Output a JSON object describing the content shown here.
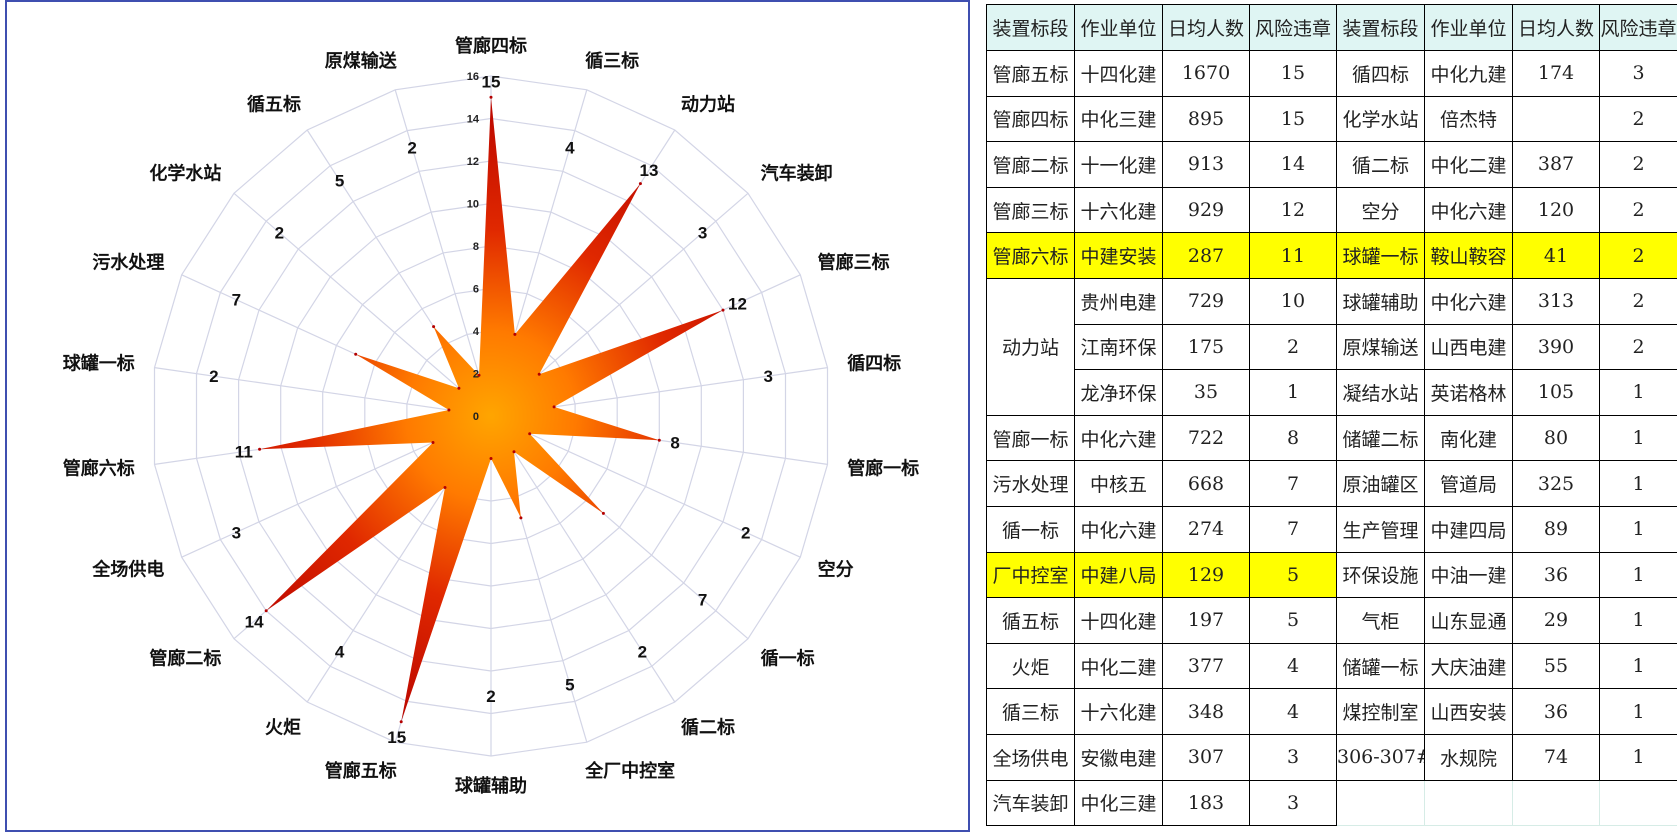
{
  "chart_data": {
    "type": "radar",
    "title": "",
    "rlim": [
      0,
      16
    ],
    "r_ticks": [
      "0",
      "2",
      "4",
      "6",
      "8",
      "10",
      "12",
      "14",
      "16"
    ],
    "grid": true,
    "categories": [
      "管廊四标",
      "循三标",
      "动力站",
      "汽车装卸",
      "管廊三标",
      "循四标",
      "管廊一标",
      "空分",
      "循一标",
      "循二标",
      "全厂中控室",
      "球罐辅助",
      "管廊五标",
      "火炬",
      "管廊二标",
      "全场供电",
      "管廊六标",
      "球罐一标",
      "污水处理",
      "化学水站",
      "循五标",
      "原煤输送"
    ],
    "series": [
      {
        "values": [
          15,
          4,
          13,
          3,
          12,
          3,
          8,
          2,
          7,
          2,
          5,
          2,
          15,
          4,
          14,
          3,
          11,
          2,
          7,
          2,
          5,
          2
        ]
      }
    ],
    "value_labels": [
      "15",
      "4",
      "13",
      "3",
      "12",
      "3",
      "8",
      "2",
      "7",
      "2",
      "5",
      "2",
      "15",
      "4",
      "14",
      "3",
      "11",
      "2",
      "7",
      "2",
      "5",
      "2"
    ],
    "colors": {
      "center": "#ffa500",
      "edge": "#b40000",
      "grid": "#d3d5e6",
      "frame": "#3f4fb0"
    }
  },
  "table": {
    "headers": [
      "装置标段",
      "作业单位",
      "日均人数",
      "风险违章",
      "装置标段",
      "作业单位",
      "日均人数",
      "风险违章"
    ],
    "left_rows": [
      {
        "seg": "管廊五标",
        "unit": "十四化建",
        "people": "1670",
        "risk": "15"
      },
      {
        "seg": "管廊四标",
        "unit": "中化三建",
        "people": "895",
        "risk": "15"
      },
      {
        "seg": "管廊二标",
        "unit": "十一化建",
        "people": "913",
        "risk": "14"
      },
      {
        "seg": "管廊三标",
        "unit": "十六化建",
        "people": "929",
        "risk": "12"
      },
      {
        "seg": "管廊六标",
        "unit": "中建安装",
        "people": "287",
        "risk": "11",
        "hl": true
      },
      {
        "seg": "动力站",
        "span": 3,
        "unit": "贵州电建",
        "people": "729",
        "risk": "10"
      },
      {
        "unit": "江南环保",
        "people": "175",
        "risk": "2"
      },
      {
        "unit": "龙净环保",
        "people": "35",
        "risk": "1"
      },
      {
        "seg": "管廊一标",
        "unit": "中化六建",
        "people": "722",
        "risk": "8"
      },
      {
        "seg": "污水处理",
        "unit": "中核五",
        "people": "668",
        "risk": "7"
      },
      {
        "seg": "循一标",
        "unit": "中化六建",
        "people": "274",
        "risk": "7"
      },
      {
        "seg": "厂中控室",
        "unit": "中建八局",
        "people": "129",
        "risk": "5",
        "hl": true
      },
      {
        "seg": "循五标",
        "unit": "十四化建",
        "people": "197",
        "risk": "5"
      },
      {
        "seg": "火炬",
        "unit": "中化二建",
        "people": "377",
        "risk": "4"
      },
      {
        "seg": "循三标",
        "unit": "十六化建",
        "people": "348",
        "risk": "4"
      },
      {
        "seg": "全场供电",
        "unit": "安徽电建",
        "people": "307",
        "risk": "3"
      },
      {
        "seg": "汽车装卸",
        "unit": "中化三建",
        "people": "183",
        "risk": "3"
      }
    ],
    "right_rows": [
      {
        "seg": "循四标",
        "unit": "中化九建",
        "people": "174",
        "risk": "3"
      },
      {
        "seg": "化学水站",
        "unit": "倍杰特",
        "people": "",
        "risk": "2"
      },
      {
        "seg": "循二标",
        "unit": "中化二建",
        "people": "387",
        "risk": "2"
      },
      {
        "seg": "空分",
        "unit": "中化六建",
        "people": "120",
        "risk": "2"
      },
      {
        "seg": "球罐一标",
        "unit": "鞍山鞍容",
        "people": "41",
        "risk": "2",
        "hl": true
      },
      {
        "seg": "球罐辅助",
        "unit": "中化六建",
        "people": "313",
        "risk": "2"
      },
      {
        "seg": "原煤输送",
        "unit": "山西电建",
        "people": "390",
        "risk": "2"
      },
      {
        "seg": "凝结水站",
        "unit": "英诺格林",
        "people": "105",
        "risk": "1"
      },
      {
        "seg": "储罐二标",
        "unit": "南化建",
        "people": "80",
        "risk": "1"
      },
      {
        "seg": "原油罐区",
        "unit": "管道局",
        "people": "325",
        "risk": "1"
      },
      {
        "seg": "生产管理",
        "unit": "中建四局",
        "people": "89",
        "risk": "1"
      },
      {
        "seg": "环保设施",
        "unit": "中油一建",
        "people": "36",
        "risk": "1"
      },
      {
        "seg": "气柜",
        "unit": "山东显通",
        "people": "29",
        "risk": "1"
      },
      {
        "seg": "储罐一标",
        "unit": "大庆油建",
        "people": "55",
        "risk": "1"
      },
      {
        "seg": "煤控制室",
        "unit": "山西安装",
        "people": "36",
        "risk": "1"
      },
      {
        "seg": "306-307#",
        "unit": "水规院",
        "people": "74",
        "risk": "1"
      },
      {
        "empty": true
      }
    ]
  }
}
